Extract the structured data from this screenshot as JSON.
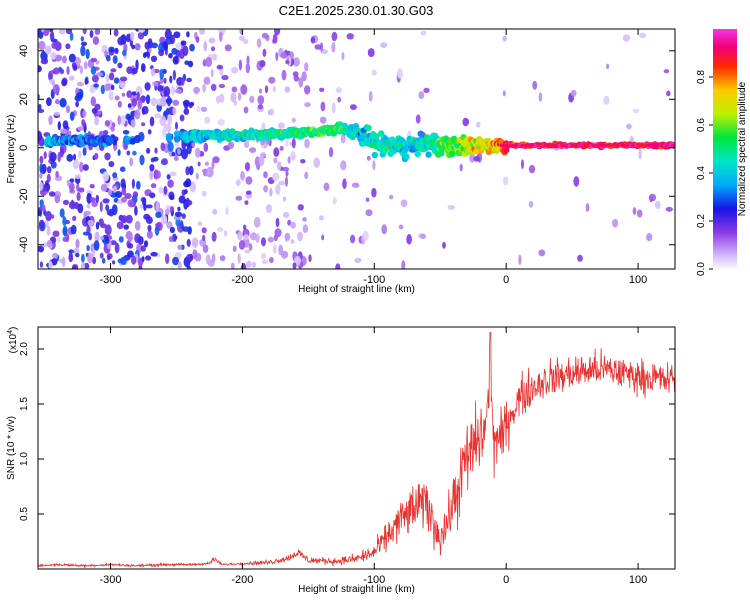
{
  "title": "C2E1.2025.230.01.30.G03",
  "chart_data": [
    {
      "type": "heatmap",
      "xlabel": "Height of straight line (km)",
      "ylabel": "Frequency (Hz)",
      "xlim": [
        -355,
        128
      ],
      "ylim": [
        -50,
        49
      ],
      "xticks": [
        -300,
        -200,
        -100,
        0,
        100
      ],
      "xtick_labels": [
        "-300",
        "-200",
        "-100",
        "0",
        "100"
      ],
      "yticks": [
        -40,
        -20,
        0,
        20,
        40
      ],
      "ytick_labels": [
        "-40",
        "-20",
        "0",
        "20",
        "40"
      ],
      "colorbar": {
        "label": "Normalized spectral amplitude",
        "range": [
          0,
          1
        ],
        "ticks": [
          0.0,
          0.2,
          0.4,
          0.6,
          0.8
        ],
        "tick_labels": [
          "0.0",
          "0.2",
          "0.4",
          "0.6",
          "0.8"
        ],
        "colormap": "rainbow (white-violet-blue-cyan-green-yellow-red-magenta)"
      },
      "ridge": {
        "x": [
          -345,
          -330,
          -300,
          -290,
          -240,
          -200,
          -160,
          -140,
          -125,
          -115,
          -100,
          -90,
          -75,
          -60,
          -50,
          -40,
          -30,
          -20,
          -10,
          0,
          20,
          50,
          80,
          100,
          128
        ],
        "y": [
          3,
          3,
          3,
          3,
          5,
          5,
          6,
          7,
          8,
          7,
          2,
          1,
          0,
          2,
          1,
          1,
          1,
          1,
          1,
          1,
          1,
          1,
          1,
          1,
          1
        ],
        "amplitude": [
          0.35,
          0.3,
          0.28,
          0.3,
          0.4,
          0.45,
          0.5,
          0.55,
          0.5,
          0.4,
          0.45,
          0.45,
          0.4,
          0.45,
          0.55,
          0.6,
          0.65,
          0.7,
          0.75,
          0.85,
          0.9,
          0.92,
          0.9,
          0.9,
          0.9
        ]
      },
      "grid": false
    },
    {
      "type": "line",
      "ylabel": "SNR (10 * v/v)",
      "xlabel": "Height of straight line (km)",
      "scale_label": "(x10",
      "scale_exponent": "4",
      "xlim": [
        -355,
        128
      ],
      "ylim": [
        0,
        2.2
      ],
      "xticks": [
        -300,
        -200,
        -100,
        0,
        100
      ],
      "xtick_labels": [
        "-300",
        "-200",
        "-100",
        "0",
        "100"
      ],
      "yticks": [
        0.5,
        1.0,
        1.5,
        2.0
      ],
      "ytick_labels": [
        "0.5",
        "1.0",
        "1.5",
        "2.0"
      ],
      "series": [
        {
          "color": "#e8322d",
          "x": [
            -355,
            -340,
            -320,
            -300,
            -280,
            -260,
            -240,
            -225,
            -222,
            -215,
            -200,
            -180,
            -165,
            -158,
            -150,
            -130,
            -115,
            -100,
            -90,
            -80,
            -70,
            -60,
            -55,
            -50,
            -45,
            -40,
            -35,
            -30,
            -25,
            -20,
            -15,
            -12,
            -10,
            -5,
            0,
            5,
            10,
            20,
            30,
            40,
            50,
            60,
            70,
            80,
            90,
            100,
            110,
            120,
            128
          ],
          "y": [
            0.03,
            0.04,
            0.03,
            0.04,
            0.03,
            0.04,
            0.04,
            0.05,
            0.09,
            0.04,
            0.05,
            0.06,
            0.1,
            0.15,
            0.08,
            0.07,
            0.09,
            0.15,
            0.3,
            0.45,
            0.55,
            0.6,
            0.4,
            0.3,
            0.4,
            0.6,
            0.8,
            1.0,
            1.1,
            1.2,
            1.3,
            1.9,
            1.2,
            1.15,
            1.3,
            1.45,
            1.55,
            1.65,
            1.72,
            1.75,
            1.78,
            1.8,
            1.82,
            1.8,
            1.78,
            1.75,
            1.74,
            1.72,
            1.72
          ],
          "noise": [
            0.01,
            0.01,
            0.01,
            0.01,
            0.01,
            0.01,
            0.01,
            0.01,
            0.02,
            0.01,
            0.01,
            0.02,
            0.03,
            0.04,
            0.03,
            0.03,
            0.04,
            0.08,
            0.12,
            0.18,
            0.2,
            0.22,
            0.18,
            0.15,
            0.18,
            0.25,
            0.3,
            0.32,
            0.32,
            0.32,
            0.3,
            0.3,
            0.3,
            0.25,
            0.2,
            0.2,
            0.18,
            0.16,
            0.16,
            0.16,
            0.15,
            0.15,
            0.15,
            0.15,
            0.14,
            0.14,
            0.14,
            0.14,
            0.14
          ]
        }
      ],
      "grid": false
    }
  ]
}
